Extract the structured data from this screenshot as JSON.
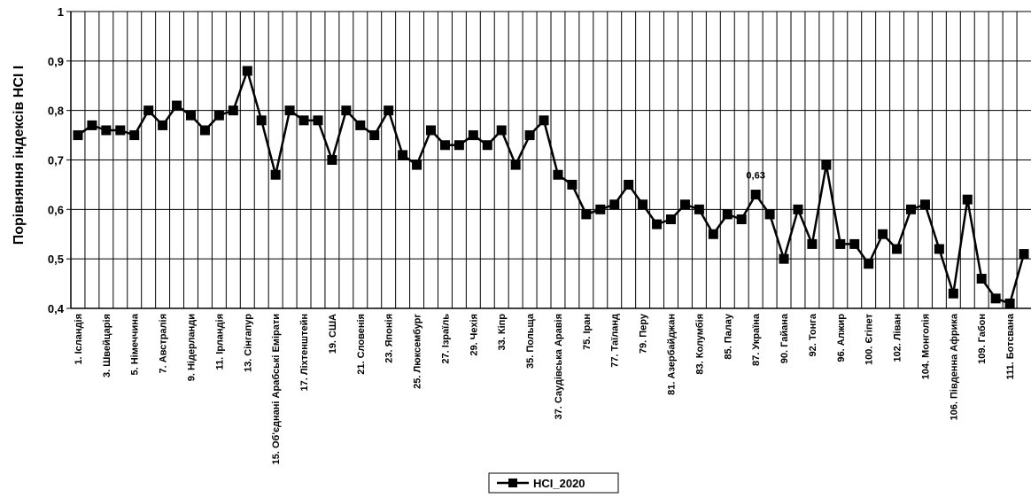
{
  "chart_data": {
    "type": "line",
    "ylabel": "Порівняння індексів HCI I",
    "ylim": [
      0.4,
      1.0
    ],
    "yticks": [
      "0,4",
      "0,5",
      "0,6",
      "0,7",
      "0,8",
      "0,9",
      "1"
    ],
    "grid": true,
    "legend_position": "bottom-center",
    "categories": [
      "1. Ісландія",
      "",
      "3. Швейцарія",
      "",
      "5. Німеччина",
      "",
      "7. Австралія",
      "",
      "9. Нідерланди",
      "",
      "11. Ірландія",
      "",
      "13. Сінгапур",
      "",
      "15. Об'єднані Арабські Емірати",
      "",
      "17. Ліхтенштейн",
      "",
      "19. США",
      "",
      "21. Словенія",
      "",
      "23. Японія",
      "",
      "25. Люксембург",
      "",
      "27. Ізраїль",
      "",
      "29. Чехія",
      "",
      "33. Кіпр",
      "",
      "35. Польща",
      "",
      "37. Саудівська Аравія",
      "",
      "75. Іран",
      "",
      "77. Таїланд",
      "",
      "79. Перу",
      "",
      "81. Азербайджан",
      "",
      "83. Колумбія",
      "",
      "85. Палау",
      "",
      "87. Україна",
      "",
      "90. Гайана",
      "",
      "92. Тонга",
      "",
      "96. Алжир",
      "",
      "100. Єгіпет",
      "",
      "102. Ліван",
      "",
      "104. Монголія",
      "",
      "106. Південна Африка",
      "",
      "109. Габон",
      "",
      "111. Ботсвана",
      ""
    ],
    "series": [
      {
        "name": "HCI_2020",
        "color": "#000000",
        "values": [
          0.75,
          0.77,
          0.76,
          0.76,
          0.75,
          0.8,
          0.77,
          0.81,
          0.79,
          0.76,
          0.79,
          0.8,
          0.88,
          0.78,
          0.67,
          0.8,
          0.78,
          0.78,
          0.7,
          0.8,
          0.77,
          0.75,
          0.8,
          0.71,
          0.69,
          0.76,
          0.73,
          0.73,
          0.75,
          0.73,
          0.76,
          0.69,
          0.75,
          0.78,
          0.67,
          0.65,
          0.59,
          0.6,
          0.61,
          0.65,
          0.61,
          0.57,
          0.58,
          0.61,
          0.6,
          0.55,
          0.59,
          0.58,
          0.63,
          0.59,
          0.5,
          0.6,
          0.53,
          0.69,
          0.53,
          0.53,
          0.49,
          0.55,
          0.52,
          0.6,
          0.61,
          0.52,
          0.43,
          0.62,
          0.46,
          0.42,
          0.41,
          0.51
        ]
      }
    ],
    "annotations": [
      {
        "category": "87. Україна",
        "value": 0.63,
        "text": "0,63"
      }
    ]
  }
}
